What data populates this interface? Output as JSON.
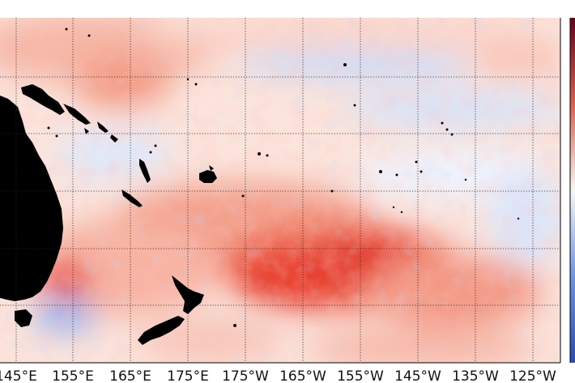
{
  "map": {
    "longitude_labels": [
      "145°E",
      "155°E",
      "165°E",
      "175°E",
      "175°W",
      "165°W",
      "155°W",
      "145°W",
      "135°W",
      "125°W"
    ],
    "gridlines": "dotted",
    "colors": {
      "warm": "#e8302a",
      "warm_light": "#f7b6a6",
      "neutral": "#ffffff",
      "cool": "#5d8fe8",
      "cool_light": "#c9dcfa",
      "land": "#000000",
      "colorbar_top": "#67001f",
      "colorbar_bottom": "#2a4bb0"
    },
    "land_features": [
      "australia-landmass",
      "new-guinea",
      "solomon-islands",
      "vanuatu",
      "fiji",
      "new-caledonia",
      "new-zealand-north-island",
      "new-zealand-south-island",
      "tasmania"
    ]
  }
}
